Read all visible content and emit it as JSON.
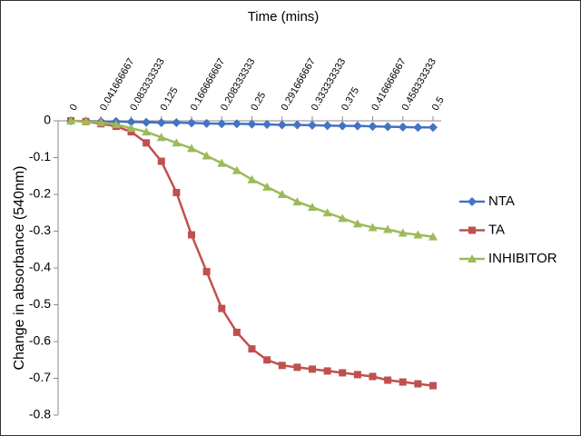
{
  "chart_data": {
    "type": "line",
    "title": "Time (mins)",
    "y_label": "Change in absorbance (540nm)",
    "categories": [
      "0",
      null,
      "0.041666667",
      null,
      "0.083333333",
      null,
      "0.125",
      null,
      "0.166666667",
      null,
      "0.208333333",
      null,
      "0.25",
      null,
      "0.291666667",
      null,
      "0.333333333",
      null,
      "0.375",
      null,
      "0.416666667",
      null,
      "0.458333333",
      null,
      "0.5"
    ],
    "series": [
      {
        "name": "NTA",
        "color": "#4472c4",
        "marker": "diamond",
        "values": [
          0,
          -0.001,
          -0.002,
          -0.002,
          -0.003,
          -0.004,
          -0.005,
          -0.005,
          -0.006,
          -0.007,
          -0.008,
          -0.008,
          -0.009,
          -0.01,
          -0.011,
          -0.011,
          -0.012,
          -0.013,
          -0.014,
          -0.014,
          -0.015,
          -0.016,
          -0.017,
          -0.018,
          -0.018
        ]
      },
      {
        "name": "TA",
        "color": "#c0504d",
        "marker": "square",
        "values": [
          0,
          -0.002,
          -0.008,
          -0.015,
          -0.03,
          -0.06,
          -0.11,
          -0.195,
          -0.31,
          -0.41,
          -0.51,
          -0.575,
          -0.62,
          -0.65,
          -0.665,
          -0.67,
          -0.675,
          -0.68,
          -0.685,
          -0.69,
          -0.695,
          -0.705,
          -0.71,
          -0.715,
          -0.72
        ]
      },
      {
        "name": "INHIBITOR",
        "color": "#9bbb59",
        "marker": "triangle",
        "values": [
          0,
          -0.002,
          -0.005,
          -0.01,
          -0.02,
          -0.03,
          -0.045,
          -0.06,
          -0.075,
          -0.095,
          -0.115,
          -0.135,
          -0.16,
          -0.18,
          -0.2,
          -0.22,
          -0.235,
          -0.25,
          -0.265,
          -0.28,
          -0.29,
          -0.295,
          -0.305,
          -0.31,
          -0.315
        ]
      }
    ],
    "ylim": [
      -0.8,
      0
    ],
    "yticks": [
      0,
      -0.1,
      -0.2,
      -0.3,
      -0.4,
      -0.5,
      -0.6,
      -0.7,
      -0.8
    ],
    "legend": "right"
  }
}
